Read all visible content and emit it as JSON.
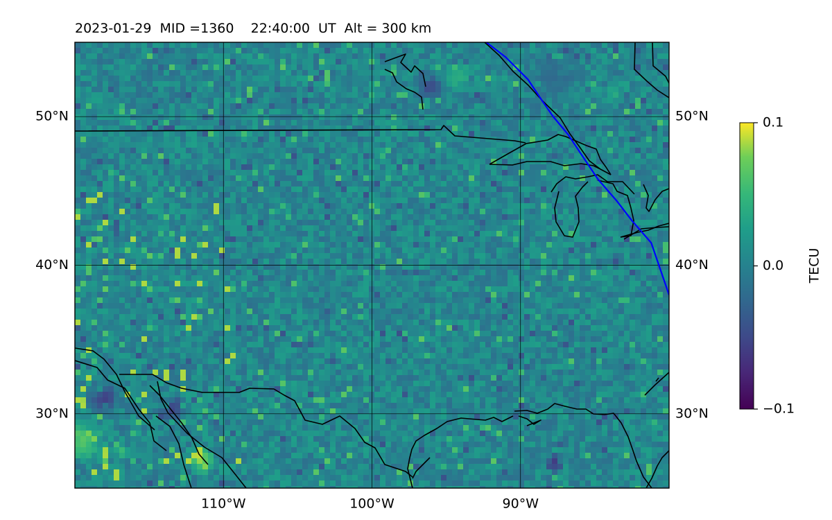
{
  "header": {
    "date": "2023-01-29",
    "mid": "MID =1360",
    "time": "22:40:00  UT",
    "altitude": "Alt = 300 km"
  },
  "map": {
    "lon_range": [
      -120,
      -80
    ],
    "lat_range": [
      25,
      55
    ],
    "x_ticks": [
      {
        "lon": -110,
        "label": "110°W"
      },
      {
        "lon": -100,
        "label": "100°W"
      },
      {
        "lon": -90,
        "label": "90°W"
      }
    ],
    "y_ticks": [
      {
        "lat": 50,
        "label": "50°N"
      },
      {
        "lat": 40,
        "label": "40°N"
      },
      {
        "lat": 30,
        "label": "30°N"
      }
    ],
    "grid": true,
    "coastline_color": "#000000",
    "terminator_color": "#0000ff",
    "terminator": [
      [
        -92.3,
        55
      ],
      [
        -91,
        54
      ],
      [
        -89.5,
        52.5
      ],
      [
        -88.5,
        51
      ],
      [
        -87.8,
        50
      ],
      [
        -86.8,
        48.8
      ],
      [
        -85.8,
        47.3
      ],
      [
        -84.8,
        45.8
      ],
      [
        -83.5,
        44.3
      ],
      [
        -82.5,
        43
      ],
      [
        -81.2,
        41.5
      ],
      [
        -80,
        38
      ]
    ]
  },
  "colorbar": {
    "label": "TECU",
    "min": -0.1,
    "max": 0.1,
    "ticks": [
      {
        "value": 0.1,
        "label": "0.1"
      },
      {
        "value": 0.0,
        "label": "0.0"
      },
      {
        "value": -0.1,
        "label": "−0.1"
      }
    ],
    "colormap": "viridis"
  }
}
